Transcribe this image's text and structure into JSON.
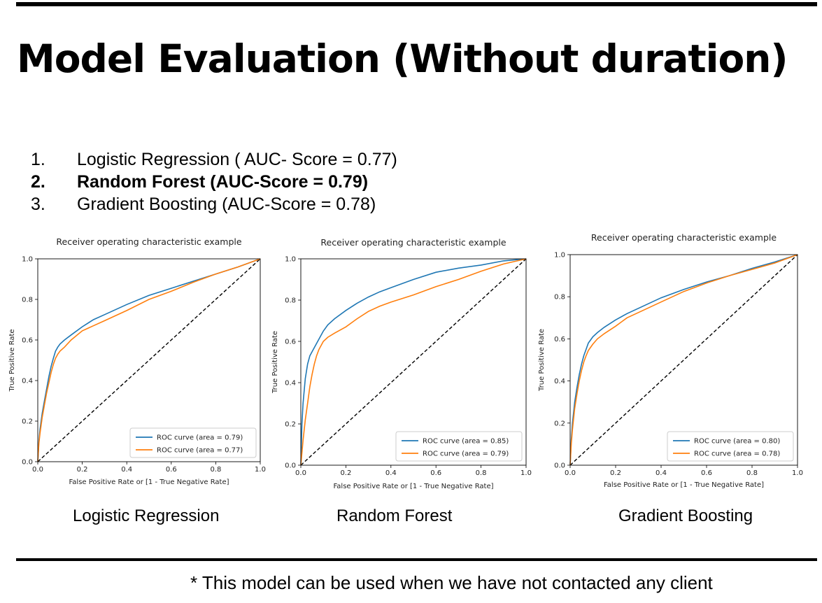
{
  "slide": {
    "title": "Model Evaluation (Without duration)",
    "models": [
      {
        "num": "1.",
        "text": "Logistic Regression ( AUC- Score = 0.77)",
        "bold": false
      },
      {
        "num": "2.",
        "text": "Random Forest (AUC-Score = 0.79)",
        "bold": true
      },
      {
        "num": "3.",
        "text": "Gradient Boosting (AUC-Score = 0.78)",
        "bold": false
      }
    ],
    "captions": [
      "Logistic Regression",
      "Random Forest",
      "Gradient Boosting"
    ],
    "footnote": "* This model can be used when we have not contacted any client"
  },
  "colors": {
    "train": "#1f77b4",
    "test": "#ff7f0e",
    "diagonal": "#000000"
  },
  "chart_data": [
    {
      "type": "line",
      "title": "Receiver operating characteristic example",
      "xlabel": "False Positive Rate or [1 - True Negative Rate]",
      "ylabel": "True Positive Rate",
      "xlim": [
        0,
        1
      ],
      "ylim": [
        0,
        1
      ],
      "xticks": [
        "0.0",
        "0.2",
        "0.4",
        "0.6",
        "0.8",
        "1.0"
      ],
      "yticks": [
        "0.0",
        "0.2",
        "0.4",
        "0.6",
        "0.8",
        "1.0"
      ],
      "grid": false,
      "legend_position": "lower right",
      "series": [
        {
          "name": "ROC curve (area = 0.79)",
          "color": "#1f77b4",
          "x": [
            0,
            0.005,
            0.01,
            0.02,
            0.03,
            0.04,
            0.05,
            0.06,
            0.07,
            0.08,
            0.09,
            0.1,
            0.12,
            0.15,
            0.2,
            0.25,
            0.3,
            0.4,
            0.5,
            0.6,
            0.7,
            0.8,
            0.9,
            1.0
          ],
          "y": [
            0,
            0.1,
            0.16,
            0.24,
            0.3,
            0.36,
            0.42,
            0.47,
            0.51,
            0.545,
            0.565,
            0.58,
            0.6,
            0.625,
            0.665,
            0.7,
            0.725,
            0.775,
            0.82,
            0.855,
            0.89,
            0.925,
            0.96,
            1.0
          ]
        },
        {
          "name": "ROC curve (area = 0.77)",
          "color": "#ff7f0e",
          "x": [
            0,
            0.005,
            0.01,
            0.02,
            0.03,
            0.04,
            0.05,
            0.06,
            0.07,
            0.08,
            0.09,
            0.1,
            0.12,
            0.15,
            0.2,
            0.25,
            0.3,
            0.4,
            0.5,
            0.6,
            0.7,
            0.8,
            0.9,
            1.0
          ],
          "y": [
            0,
            0.09,
            0.14,
            0.22,
            0.28,
            0.34,
            0.39,
            0.44,
            0.48,
            0.51,
            0.53,
            0.545,
            0.565,
            0.6,
            0.645,
            0.67,
            0.695,
            0.745,
            0.8,
            0.84,
            0.885,
            0.925,
            0.96,
            1.0
          ]
        }
      ]
    },
    {
      "type": "line",
      "title": "Receiver operating characteristic example",
      "xlabel": "False Positive Rate or [1 - True Negative Rate]",
      "ylabel": "True Positive Rate",
      "xlim": [
        0,
        1
      ],
      "ylim": [
        0,
        1
      ],
      "xticks": [
        "0.0",
        "0.2",
        "0.4",
        "0.6",
        "0.8",
        "1.0"
      ],
      "yticks": [
        "0.0",
        "0.2",
        "0.4",
        "0.6",
        "0.8",
        "1.0"
      ],
      "grid": false,
      "legend_position": "lower right",
      "series": [
        {
          "name": "ROC curve (area = 0.85)",
          "color": "#1f77b4",
          "x": [
            0,
            0.005,
            0.01,
            0.02,
            0.03,
            0.04,
            0.05,
            0.07,
            0.1,
            0.12,
            0.15,
            0.2,
            0.25,
            0.3,
            0.35,
            0.4,
            0.5,
            0.6,
            0.7,
            0.8,
            0.9,
            1.0
          ],
          "y": [
            0,
            0.2,
            0.3,
            0.42,
            0.49,
            0.53,
            0.55,
            0.59,
            0.65,
            0.68,
            0.71,
            0.75,
            0.785,
            0.815,
            0.84,
            0.86,
            0.9,
            0.935,
            0.955,
            0.97,
            0.99,
            1.0
          ]
        },
        {
          "name": "ROC curve (area = 0.79)",
          "color": "#ff7f0e",
          "x": [
            0,
            0.005,
            0.01,
            0.02,
            0.03,
            0.04,
            0.05,
            0.06,
            0.07,
            0.08,
            0.1,
            0.12,
            0.15,
            0.2,
            0.25,
            0.3,
            0.35,
            0.4,
            0.5,
            0.6,
            0.7,
            0.8,
            0.9,
            1.0
          ],
          "y": [
            0,
            0.06,
            0.12,
            0.22,
            0.3,
            0.38,
            0.44,
            0.49,
            0.53,
            0.56,
            0.6,
            0.62,
            0.64,
            0.67,
            0.71,
            0.745,
            0.77,
            0.79,
            0.825,
            0.865,
            0.9,
            0.94,
            0.975,
            1.0
          ]
        }
      ]
    },
    {
      "type": "line",
      "title": "Receiver operating characteristic example",
      "xlabel": "False Positive Rate or [1 - True Negative Rate]",
      "ylabel": "True Positive Rate",
      "xlim": [
        0,
        1
      ],
      "ylim": [
        0,
        1
      ],
      "xticks": [
        "0.0",
        "0.2",
        "0.4",
        "0.6",
        "0.8",
        "1.0"
      ],
      "yticks": [
        "0.0",
        "0.2",
        "0.4",
        "0.6",
        "0.8",
        "1.0"
      ],
      "grid": false,
      "legend_position": "lower right",
      "series": [
        {
          "name": "ROC curve (area = 0.80)",
          "color": "#1f77b4",
          "x": [
            0,
            0.005,
            0.01,
            0.02,
            0.03,
            0.04,
            0.05,
            0.06,
            0.07,
            0.08,
            0.09,
            0.1,
            0.12,
            0.15,
            0.2,
            0.25,
            0.3,
            0.4,
            0.5,
            0.6,
            0.7,
            0.8,
            0.9,
            1.0
          ],
          "y": [
            0,
            0.12,
            0.2,
            0.3,
            0.37,
            0.43,
            0.48,
            0.52,
            0.55,
            0.58,
            0.595,
            0.61,
            0.63,
            0.655,
            0.69,
            0.72,
            0.745,
            0.795,
            0.835,
            0.87,
            0.9,
            0.935,
            0.965,
            1.0
          ]
        },
        {
          "name": "ROC curve (area = 0.78)",
          "color": "#ff7f0e",
          "x": [
            0,
            0.005,
            0.01,
            0.02,
            0.03,
            0.04,
            0.05,
            0.06,
            0.07,
            0.08,
            0.09,
            0.1,
            0.12,
            0.15,
            0.2,
            0.25,
            0.3,
            0.4,
            0.5,
            0.6,
            0.7,
            0.8,
            0.9,
            1.0
          ],
          "y": [
            0,
            0.1,
            0.17,
            0.27,
            0.34,
            0.4,
            0.45,
            0.49,
            0.52,
            0.545,
            0.56,
            0.575,
            0.6,
            0.625,
            0.66,
            0.7,
            0.725,
            0.775,
            0.825,
            0.865,
            0.9,
            0.93,
            0.96,
            1.0
          ]
        }
      ]
    }
  ]
}
